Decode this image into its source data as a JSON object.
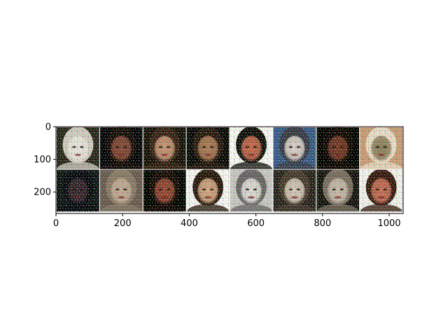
{
  "chart_data": {
    "type": "image-grid",
    "title": "",
    "xlabel": "",
    "ylabel": "",
    "xlim": [
      0,
      1042
    ],
    "ylim": [
      266,
      0
    ],
    "x_ticks": [
      0,
      200,
      400,
      600,
      800,
      1000
    ],
    "y_ticks": [
      0,
      100,
      200
    ],
    "grid": {
      "rows": 2,
      "cols": 8,
      "cell_size": 128,
      "padding": 2
    },
    "grid_lines": false,
    "legend": "none",
    "tiles": [
      {
        "id": 1,
        "row": 0,
        "col": 0,
        "bg": "#2b2620",
        "face": "#e8e2dc",
        "hair": "#d0c8c0"
      },
      {
        "id": 2,
        "row": 0,
        "col": 1,
        "bg": "#08060a",
        "face": "#8a4a3c",
        "hair": "#1a0e0c"
      },
      {
        "id": 3,
        "row": 0,
        "col": 2,
        "bg": "#1a120e",
        "face": "#c89478",
        "hair": "#3a2418"
      },
      {
        "id": 4,
        "row": 0,
        "col": 3,
        "bg": "#0c0a0a",
        "face": "#b07a5a",
        "hair": "#2a1a12"
      },
      {
        "id": 5,
        "row": 0,
        "col": 4,
        "bg": "#f6f4f2",
        "face": "#c86a50",
        "hair": "#141010"
      },
      {
        "id": 6,
        "row": 0,
        "col": 5,
        "bg": "#3a5a8a",
        "face": "#dcd0cc",
        "hair": "#3a3a48"
      },
      {
        "id": 7,
        "row": 0,
        "col": 6,
        "bg": "#060404",
        "face": "#7a3a2c",
        "hair": "#140a08"
      },
      {
        "id": 8,
        "row": 0,
        "col": 7,
        "bg": "#c89a78",
        "face": "#8a7a5a",
        "hair": "#e8d8c8"
      },
      {
        "id": 9,
        "row": 1,
        "col": 0,
        "bg": "#101418",
        "face": "#3a2830",
        "hair": "#0c0a14"
      },
      {
        "id": 10,
        "row": 1,
        "col": 1,
        "bg": "#6a5a50",
        "face": "#c4a898",
        "hair": "#8a7868"
      },
      {
        "id": 11,
        "row": 1,
        "col": 2,
        "bg": "#040404",
        "face": "#9a4a38",
        "hair": "#1a0c0a"
      },
      {
        "id": 12,
        "row": 1,
        "col": 3,
        "bg": "#f4f2f0",
        "face": "#d8a888",
        "hair": "#2a1810"
      },
      {
        "id": 13,
        "row": 1,
        "col": 4,
        "bg": "#c8c4c4",
        "face": "#e0dcd8",
        "hair": "#6a6468"
      },
      {
        "id": 14,
        "row": 1,
        "col": 5,
        "bg": "#2a2420",
        "face": "#d8c8bc",
        "hair": "#4a3a32"
      },
      {
        "id": 15,
        "row": 1,
        "col": 6,
        "bg": "#181412",
        "face": "#c8b8ac",
        "hair": "#7a6c62"
      },
      {
        "id": 16,
        "row": 1,
        "col": 7,
        "bg": "#f0eeec",
        "face": "#c8705a",
        "hair": "#3a1a14"
      }
    ]
  }
}
